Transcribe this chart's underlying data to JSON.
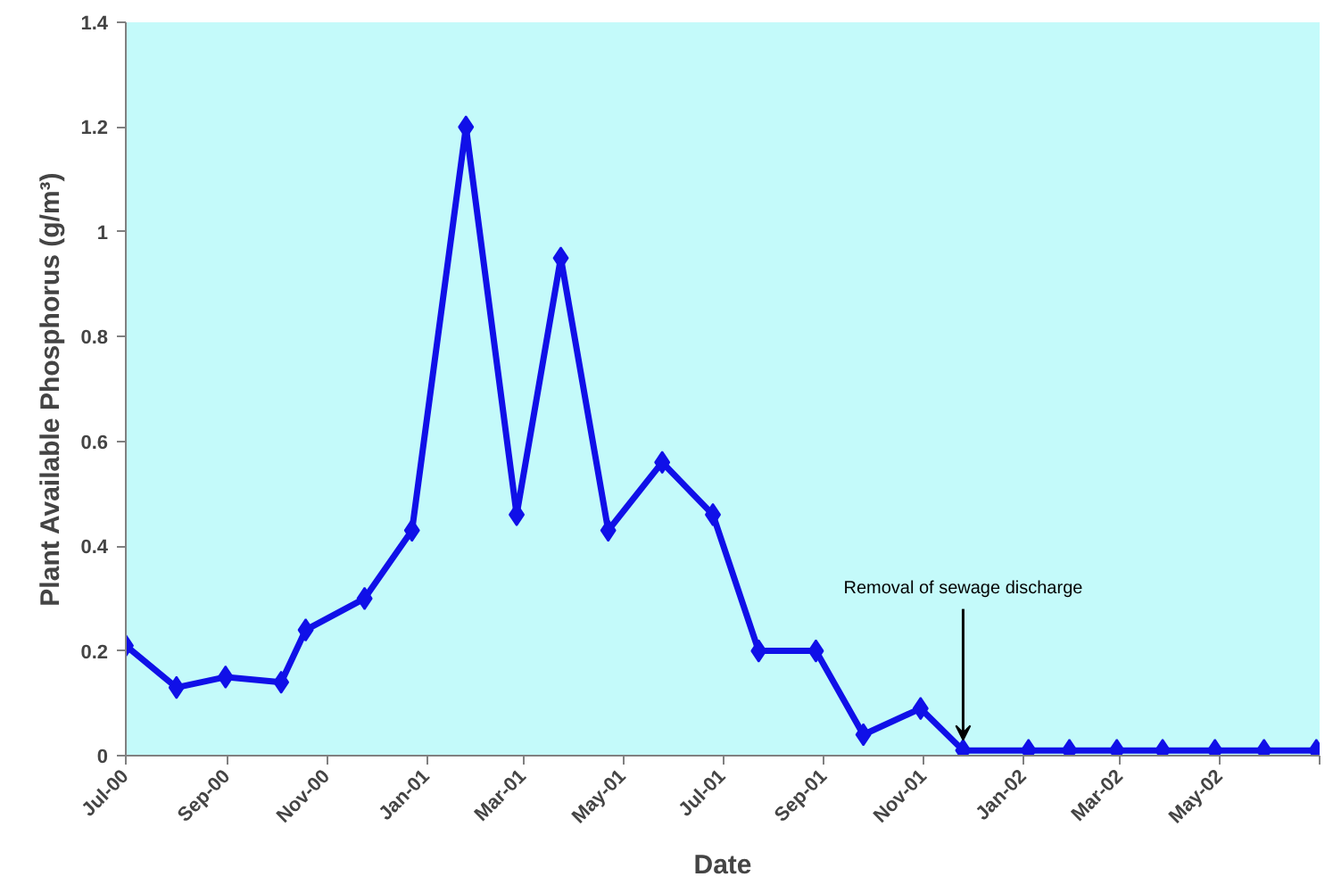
{
  "chart_data": {
    "type": "line",
    "xlabel": "Date",
    "ylabel": "Plant Available Phosphorus (g/m³)",
    "x": [
      "2000-07-01",
      "2000-08-01",
      "2000-08-31",
      "2000-10-04",
      "2000-10-19",
      "2000-11-24",
      "2000-12-23",
      "2001-01-25",
      "2001-02-25",
      "2001-03-24",
      "2001-04-22",
      "2001-05-25",
      "2001-06-25",
      "2001-07-23",
      "2001-08-27",
      "2001-09-25",
      "2001-10-30",
      "2001-11-25",
      "2002-01-04",
      "2002-01-29",
      "2002-02-27",
      "2002-03-27",
      "2002-04-28",
      "2002-05-28",
      "2002-06-29"
    ],
    "series": [
      {
        "color": "#1010e8",
        "values": [
          0.21,
          0.13,
          0.15,
          0.14,
          0.24,
          0.3,
          0.43,
          1.2,
          0.46,
          0.95,
          0.43,
          0.56,
          0.46,
          0.2,
          0.2,
          0.04,
          0.09,
          0.01,
          0.01,
          0.01,
          0.01,
          0.01,
          0.01,
          0.01,
          0.01
        ]
      }
    ],
    "xlim": [
      "2000-07-01",
      "2002-07-01"
    ],
    "xticks": [
      {
        "value": "2000-07-01",
        "label": "Jul-00"
      },
      {
        "value": "2000-09-01",
        "label": "Sep-00"
      },
      {
        "value": "2000-11-01",
        "label": "Nov-00"
      },
      {
        "value": "2001-01-01",
        "label": "Jan-01"
      },
      {
        "value": "2001-03-01",
        "label": "Mar-01"
      },
      {
        "value": "2001-05-01",
        "label": "May-01"
      },
      {
        "value": "2001-07-01",
        "label": "Jul-01"
      },
      {
        "value": "2001-09-01",
        "label": "Sep-01"
      },
      {
        "value": "2001-11-01",
        "label": "Nov-01"
      },
      {
        "value": "2002-01-01",
        "label": "Jan-02"
      },
      {
        "value": "2002-03-01",
        "label": "Mar-02"
      },
      {
        "value": "2002-05-01",
        "label": "May-02"
      },
      {
        "value": "2002-07-01",
        "label": null
      }
    ],
    "ylim": [
      0,
      1.4
    ],
    "yticks": [
      0,
      0.2,
      0.4,
      0.6,
      0.8,
      1,
      1.2,
      1.4
    ],
    "annotations": [
      {
        "text": "Removal of sewage discharge",
        "x": "2001-11-25",
        "y": 0.01
      }
    ],
    "grid": false,
    "marker": "diamond",
    "line_style": "solid"
  }
}
